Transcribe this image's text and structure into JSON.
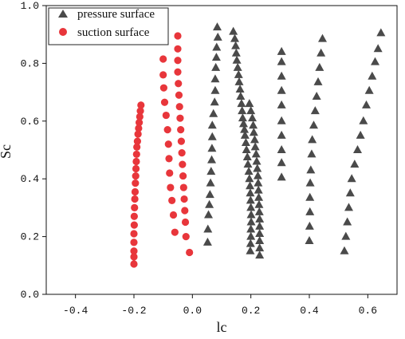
{
  "chart_data": {
    "type": "scatter",
    "xlabel": "lc",
    "ylabel": "Sc",
    "xlim": [
      -0.5,
      0.7
    ],
    "ylim": [
      0.0,
      1.0
    ],
    "xticks": [
      -0.4,
      -0.2,
      0.0,
      0.2,
      0.4,
      0.6
    ],
    "xtick_labels": [
      "-0.4",
      "-0.2",
      "0.0",
      "0.2",
      "0.4",
      "0.6"
    ],
    "yticks": [
      0.0,
      0.2,
      0.4,
      0.6,
      0.8,
      1.0
    ],
    "ytick_labels": [
      "0.0",
      "0.2",
      "0.4",
      "0.6",
      "0.8",
      "1.0"
    ],
    "grid": false,
    "legend_position": "top-left",
    "series": [
      {
        "name": "pressure surface",
        "marker": "triangle",
        "color": "#4a4a4a",
        "points": [
          [
            0.085,
            0.925
          ],
          [
            0.087,
            0.89
          ],
          [
            0.083,
            0.855
          ],
          [
            0.082,
            0.82
          ],
          [
            0.08,
            0.785
          ],
          [
            0.078,
            0.745
          ],
          [
            0.078,
            0.705
          ],
          [
            0.076,
            0.665
          ],
          [
            0.072,
            0.625
          ],
          [
            0.068,
            0.585
          ],
          [
            0.068,
            0.545
          ],
          [
            0.067,
            0.505
          ],
          [
            0.066,
            0.465
          ],
          [
            0.064,
            0.425
          ],
          [
            0.062,
            0.385
          ],
          [
            0.06,
            0.345
          ],
          [
            0.058,
            0.31
          ],
          [
            0.055,
            0.275
          ],
          [
            0.053,
            0.225
          ],
          [
            0.052,
            0.18
          ],
          [
            0.14,
            0.91
          ],
          [
            0.145,
            0.885
          ],
          [
            0.148,
            0.86
          ],
          [
            0.15,
            0.835
          ],
          [
            0.152,
            0.81
          ],
          [
            0.155,
            0.785
          ],
          [
            0.158,
            0.76
          ],
          [
            0.16,
            0.735
          ],
          [
            0.163,
            0.71
          ],
          [
            0.165,
            0.685
          ],
          [
            0.168,
            0.66
          ],
          [
            0.17,
            0.635
          ],
          [
            0.172,
            0.61
          ],
          [
            0.175,
            0.59
          ],
          [
            0.178,
            0.57
          ],
          [
            0.18,
            0.55
          ],
          [
            0.183,
            0.525
          ],
          [
            0.185,
            0.5
          ],
          [
            0.188,
            0.475
          ],
          [
            0.19,
            0.45
          ],
          [
            0.193,
            0.425
          ],
          [
            0.195,
            0.4
          ],
          [
            0.197,
            0.375
          ],
          [
            0.198,
            0.35
          ],
          [
            0.199,
            0.325
          ],
          [
            0.2,
            0.3
          ],
          [
            0.201,
            0.275
          ],
          [
            0.201,
            0.25
          ],
          [
            0.2,
            0.225
          ],
          [
            0.2,
            0.2
          ],
          [
            0.199,
            0.175
          ],
          [
            0.198,
            0.15
          ],
          [
            0.195,
            0.66
          ],
          [
            0.2,
            0.635
          ],
          [
            0.205,
            0.61
          ],
          [
            0.208,
            0.585
          ],
          [
            0.21,
            0.56
          ],
          [
            0.213,
            0.535
          ],
          [
            0.215,
            0.51
          ],
          [
            0.218,
            0.485
          ],
          [
            0.22,
            0.46
          ],
          [
            0.222,
            0.435
          ],
          [
            0.224,
            0.41
          ],
          [
            0.225,
            0.385
          ],
          [
            0.226,
            0.36
          ],
          [
            0.227,
            0.335
          ],
          [
            0.228,
            0.31
          ],
          [
            0.229,
            0.285
          ],
          [
            0.23,
            0.26
          ],
          [
            0.23,
            0.235
          ],
          [
            0.23,
            0.21
          ],
          [
            0.23,
            0.185
          ],
          [
            0.23,
            0.16
          ],
          [
            0.23,
            0.135
          ],
          [
            0.305,
            0.84
          ],
          [
            0.305,
            0.805
          ],
          [
            0.305,
            0.755
          ],
          [
            0.305,
            0.705
          ],
          [
            0.305,
            0.655
          ],
          [
            0.305,
            0.6
          ],
          [
            0.305,
            0.55
          ],
          [
            0.305,
            0.5
          ],
          [
            0.305,
            0.455
          ],
          [
            0.305,
            0.405
          ],
          [
            0.445,
            0.885
          ],
          [
            0.44,
            0.835
          ],
          [
            0.435,
            0.785
          ],
          [
            0.43,
            0.735
          ],
          [
            0.425,
            0.685
          ],
          [
            0.42,
            0.635
          ],
          [
            0.415,
            0.585
          ],
          [
            0.41,
            0.535
          ],
          [
            0.408,
            0.485
          ],
          [
            0.405,
            0.43
          ],
          [
            0.403,
            0.385
          ],
          [
            0.402,
            0.335
          ],
          [
            0.402,
            0.285
          ],
          [
            0.401,
            0.235
          ],
          [
            0.4,
            0.185
          ],
          [
            0.645,
            0.905
          ],
          [
            0.635,
            0.85
          ],
          [
            0.625,
            0.805
          ],
          [
            0.615,
            0.755
          ],
          [
            0.605,
            0.705
          ],
          [
            0.595,
            0.655
          ],
          [
            0.585,
            0.6
          ],
          [
            0.575,
            0.55
          ],
          [
            0.565,
            0.5
          ],
          [
            0.555,
            0.45
          ],
          [
            0.545,
            0.4
          ],
          [
            0.54,
            0.35
          ],
          [
            0.535,
            0.3
          ],
          [
            0.53,
            0.25
          ],
          [
            0.525,
            0.2
          ],
          [
            0.52,
            0.15
          ]
        ]
      },
      {
        "name": "suction surface",
        "marker": "circle",
        "color": "#e8363b",
        "points": [
          [
            -0.176,
            0.655
          ],
          [
            -0.178,
            0.635
          ],
          [
            -0.18,
            0.615
          ],
          [
            -0.182,
            0.595
          ],
          [
            -0.184,
            0.575
          ],
          [
            -0.186,
            0.555
          ],
          [
            -0.188,
            0.53
          ],
          [
            -0.19,
            0.51
          ],
          [
            -0.191,
            0.485
          ],
          [
            -0.192,
            0.46
          ],
          [
            -0.193,
            0.435
          ],
          [
            -0.194,
            0.41
          ],
          [
            -0.195,
            0.385
          ],
          [
            -0.196,
            0.355
          ],
          [
            -0.197,
            0.33
          ],
          [
            -0.198,
            0.3
          ],
          [
            -0.199,
            0.27
          ],
          [
            -0.199,
            0.24
          ],
          [
            -0.2,
            0.21
          ],
          [
            -0.2,
            0.18
          ],
          [
            -0.2,
            0.15
          ],
          [
            -0.2,
            0.13
          ],
          [
            -0.2,
            0.105
          ],
          [
            -0.1,
            0.815
          ],
          [
            -0.1,
            0.76
          ],
          [
            -0.098,
            0.715
          ],
          [
            -0.095,
            0.665
          ],
          [
            -0.09,
            0.62
          ],
          [
            -0.085,
            0.57
          ],
          [
            -0.082,
            0.52
          ],
          [
            -0.08,
            0.47
          ],
          [
            -0.078,
            0.42
          ],
          [
            -0.075,
            0.37
          ],
          [
            -0.07,
            0.325
          ],
          [
            -0.065,
            0.275
          ],
          [
            -0.05,
            0.895
          ],
          [
            -0.05,
            0.85
          ],
          [
            -0.05,
            0.81
          ],
          [
            -0.05,
            0.77
          ],
          [
            -0.048,
            0.73
          ],
          [
            -0.046,
            0.69
          ],
          [
            -0.044,
            0.65
          ],
          [
            -0.042,
            0.61
          ],
          [
            -0.04,
            0.57
          ],
          [
            -0.038,
            0.53
          ],
          [
            -0.036,
            0.49
          ],
          [
            -0.034,
            0.45
          ],
          [
            -0.032,
            0.41
          ],
          [
            -0.03,
            0.37
          ],
          [
            -0.028,
            0.33
          ],
          [
            -0.026,
            0.29
          ],
          [
            -0.024,
            0.25
          ],
          [
            -0.022,
            0.2
          ],
          [
            -0.06,
            0.215
          ],
          [
            -0.01,
            0.145
          ]
        ]
      }
    ]
  }
}
